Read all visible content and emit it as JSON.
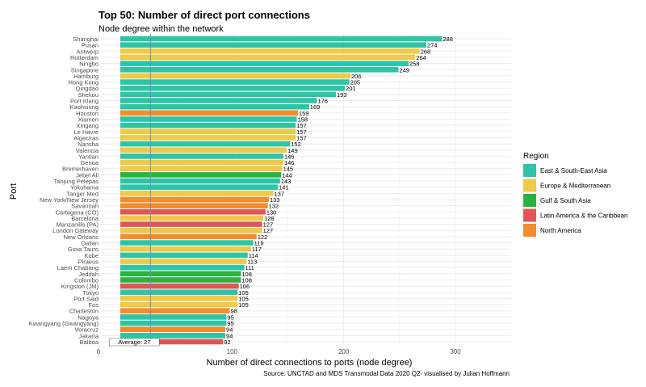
{
  "chart_data": {
    "type": "bar",
    "orientation": "horizontal",
    "title": "Top 50: Number of direct port connections",
    "subtitle": "Node degree within the network",
    "xlabel": "Number of direct connections to ports (node degree)",
    "ylabel": "Port",
    "caption": "Source: UNCTAD and MDS Transmodal Data 2020 Q2- visualised by Julian Hoffmann",
    "xlim": [
      0,
      350
    ],
    "xticks": [
      0,
      100,
      200,
      300
    ],
    "grid": true,
    "legend": {
      "title": "Region",
      "placement": "right"
    },
    "regions": [
      {
        "name": "East & South-East Asia",
        "color": "#2ec4a6"
      },
      {
        "name": "Europe & Mediterranean",
        "color": "#eec94a"
      },
      {
        "name": "Gulf & South Asia",
        "color": "#2bb33f"
      },
      {
        "name": "Latin America & the Caribbean",
        "color": "#e05656"
      },
      {
        "name": "North America",
        "color": "#f28c2c"
      }
    ],
    "average": {
      "value": 27,
      "label": "Average: 27",
      "color": "#6a8fb5"
    },
    "categories": [
      "Shanghai",
      "Pusan",
      "Antwerp",
      "Rotterdam",
      "Ningbo",
      "Singapore",
      "Hamburg",
      "Hong Kong",
      "Qingdao",
      "Shekou",
      "Port Klang",
      "Kaohsiung",
      "Houston",
      "Xiamen",
      "Xingang",
      "Le Havre",
      "Algeciras",
      "Nansha",
      "Valencia",
      "Yantian",
      "Genoa",
      "Bremerhaven",
      "Jebel Ali",
      "Tanjung Pelepas",
      "Yokohama",
      "Tanger Med",
      "New York/New Jersey",
      "Savannah",
      "Cartagena (CO)",
      "Barcelona",
      "Manzanillo (PA)",
      "London Gateway",
      "New Orleans",
      "Dalian",
      "Gioia Tauro",
      "Kobe",
      "Piraeus",
      "Laem Chabang",
      "Jeddah",
      "Colombo",
      "Kingston (JM)",
      "Tokyo",
      "Port Said",
      "Fos",
      "Charleston",
      "Nagoya",
      "Kwangyang (Gwangyang)",
      "Veracruz",
      "Jakarta",
      "Balboa"
    ],
    "values": [
      288,
      274,
      268,
      264,
      258,
      249,
      206,
      205,
      201,
      193,
      176,
      169,
      159,
      158,
      157,
      157,
      157,
      152,
      149,
      146,
      146,
      145,
      144,
      143,
      141,
      137,
      133,
      132,
      130,
      128,
      127,
      127,
      122,
      119,
      117,
      114,
      113,
      111,
      108,
      108,
      106,
      105,
      105,
      105,
      98,
      95,
      95,
      94,
      94,
      92
    ],
    "region_index": [
      0,
      0,
      1,
      1,
      0,
      0,
      1,
      0,
      0,
      0,
      0,
      0,
      4,
      0,
      0,
      1,
      1,
      0,
      1,
      0,
      1,
      1,
      2,
      0,
      0,
      1,
      4,
      4,
      3,
      1,
      3,
      1,
      4,
      0,
      1,
      0,
      1,
      0,
      2,
      2,
      3,
      0,
      1,
      1,
      4,
      0,
      0,
      4,
      0,
      3
    ]
  }
}
